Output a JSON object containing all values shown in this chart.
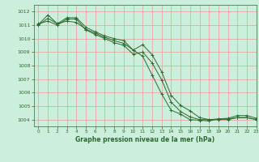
{
  "title": "Graphe pression niveau de la mer (hPa)",
  "bg_color": "#cceedd",
  "grid_color": "#ee9999",
  "line_color": "#2d6a2d",
  "xlim": [
    -0.5,
    23
  ],
  "ylim": [
    1003.5,
    1012.5
  ],
  "yticks": [
    1004,
    1005,
    1006,
    1007,
    1008,
    1009,
    1010,
    1011,
    1012
  ],
  "xticks": [
    0,
    1,
    2,
    3,
    4,
    5,
    6,
    7,
    8,
    9,
    10,
    11,
    12,
    13,
    14,
    15,
    16,
    17,
    18,
    19,
    20,
    21,
    22,
    23
  ],
  "series": [
    [
      1011.0,
      1011.5,
      1011.1,
      1011.3,
      1011.2,
      1010.7,
      1010.4,
      1010.1,
      1009.85,
      1009.65,
      1009.15,
      1008.7,
      1007.3,
      1005.9,
      1004.7,
      1004.4,
      1004.0,
      1003.95,
      1003.9,
      1004.05,
      1004.05,
      1004.15,
      1004.15,
      1004.0
    ],
    [
      1011.05,
      1011.75,
      1011.1,
      1011.55,
      1011.55,
      1010.85,
      1010.5,
      1010.2,
      1010.0,
      1009.85,
      1009.15,
      1009.55,
      1008.8,
      1007.55,
      1005.8,
      1005.05,
      1004.65,
      1004.15,
      1004.0,
      1004.05,
      1004.1,
      1004.3,
      1004.3,
      1004.1
    ],
    [
      1011.1,
      1011.3,
      1011.0,
      1011.45,
      1011.45,
      1010.65,
      1010.3,
      1010.0,
      1009.7,
      1009.5,
      1008.85,
      1009.0,
      1008.2,
      1006.95,
      1005.3,
      1004.6,
      1004.2,
      1004.0,
      1004.0,
      1004.0,
      1004.0,
      1004.15,
      1004.15,
      1004.0
    ]
  ]
}
